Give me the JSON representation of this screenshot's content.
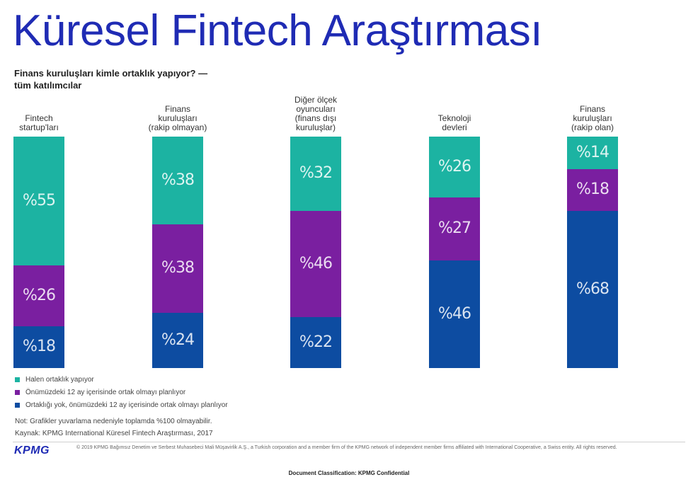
{
  "title": "Küresel Fintech Araştırması",
  "subtitle_lines": [
    "Finans kuruluşları kimle ortaklık yapıyor? —",
    "tüm katılımcılar"
  ],
  "colors": {
    "title": "#1f2bb4",
    "series": [
      "#1cb3a2",
      "#7a1fa0",
      "#0d4ca1"
    ]
  },
  "chart_data": {
    "type": "bar",
    "stacked": true,
    "orientation": "vertical",
    "categories": [
      [
        "Fintech",
        "startup'ları"
      ],
      [
        "Finans",
        "kuruluşları",
        "(rakip olmayan)"
      ],
      [
        "Diğer ölçek",
        "oyuncuları",
        "(finans dışı",
        "kuruluşlar)"
      ],
      [
        "Teknoloji",
        "devleri"
      ],
      [
        "Finans",
        "kuruluşları",
        "(rakip olan)"
      ]
    ],
    "series": [
      {
        "name": "Halen ortaklık yapıyor",
        "values": [
          55,
          38,
          32,
          26,
          14
        ],
        "labels": [
          "%55",
          "%38",
          "%32",
          "%26",
          "%14"
        ]
      },
      {
        "name": "Önümüzdeki 12 ay içerisinde ortak olmayı planlıyor",
        "values": [
          26,
          38,
          46,
          27,
          18
        ],
        "labels": [
          "%26",
          "%38",
          "%46",
          "%27",
          "%18"
        ]
      },
      {
        "name": "Ortaklığı yok, önümüzdeki 12 ay içerisinde ortak olmayı planlıyor",
        "values": [
          18,
          24,
          22,
          46,
          68
        ],
        "labels": [
          "%18",
          "%24",
          "%22",
          "%46",
          "%68"
        ]
      }
    ],
    "legend_position": "bottom-left",
    "grid": false
  },
  "note": "Not: Grafikler yuvarlama nedeniyle toplamda %100 olmayabilir.",
  "source": "Kaynak: KPMG International Küresel Fintech Araştırması, 2017",
  "logo_text": "KPMG",
  "copyright": "© 2019 KPMG Bağımsız Denetim ve Serbest Muhasebeci Mali Müşavirlik A.Ş., a Turkish corporation and a member firm of the KPMG network of independent member firms affiliated with International Cooperative, a Swiss entity. All rights reserved.",
  "classification": "Document Classification: KPMG Confidential"
}
